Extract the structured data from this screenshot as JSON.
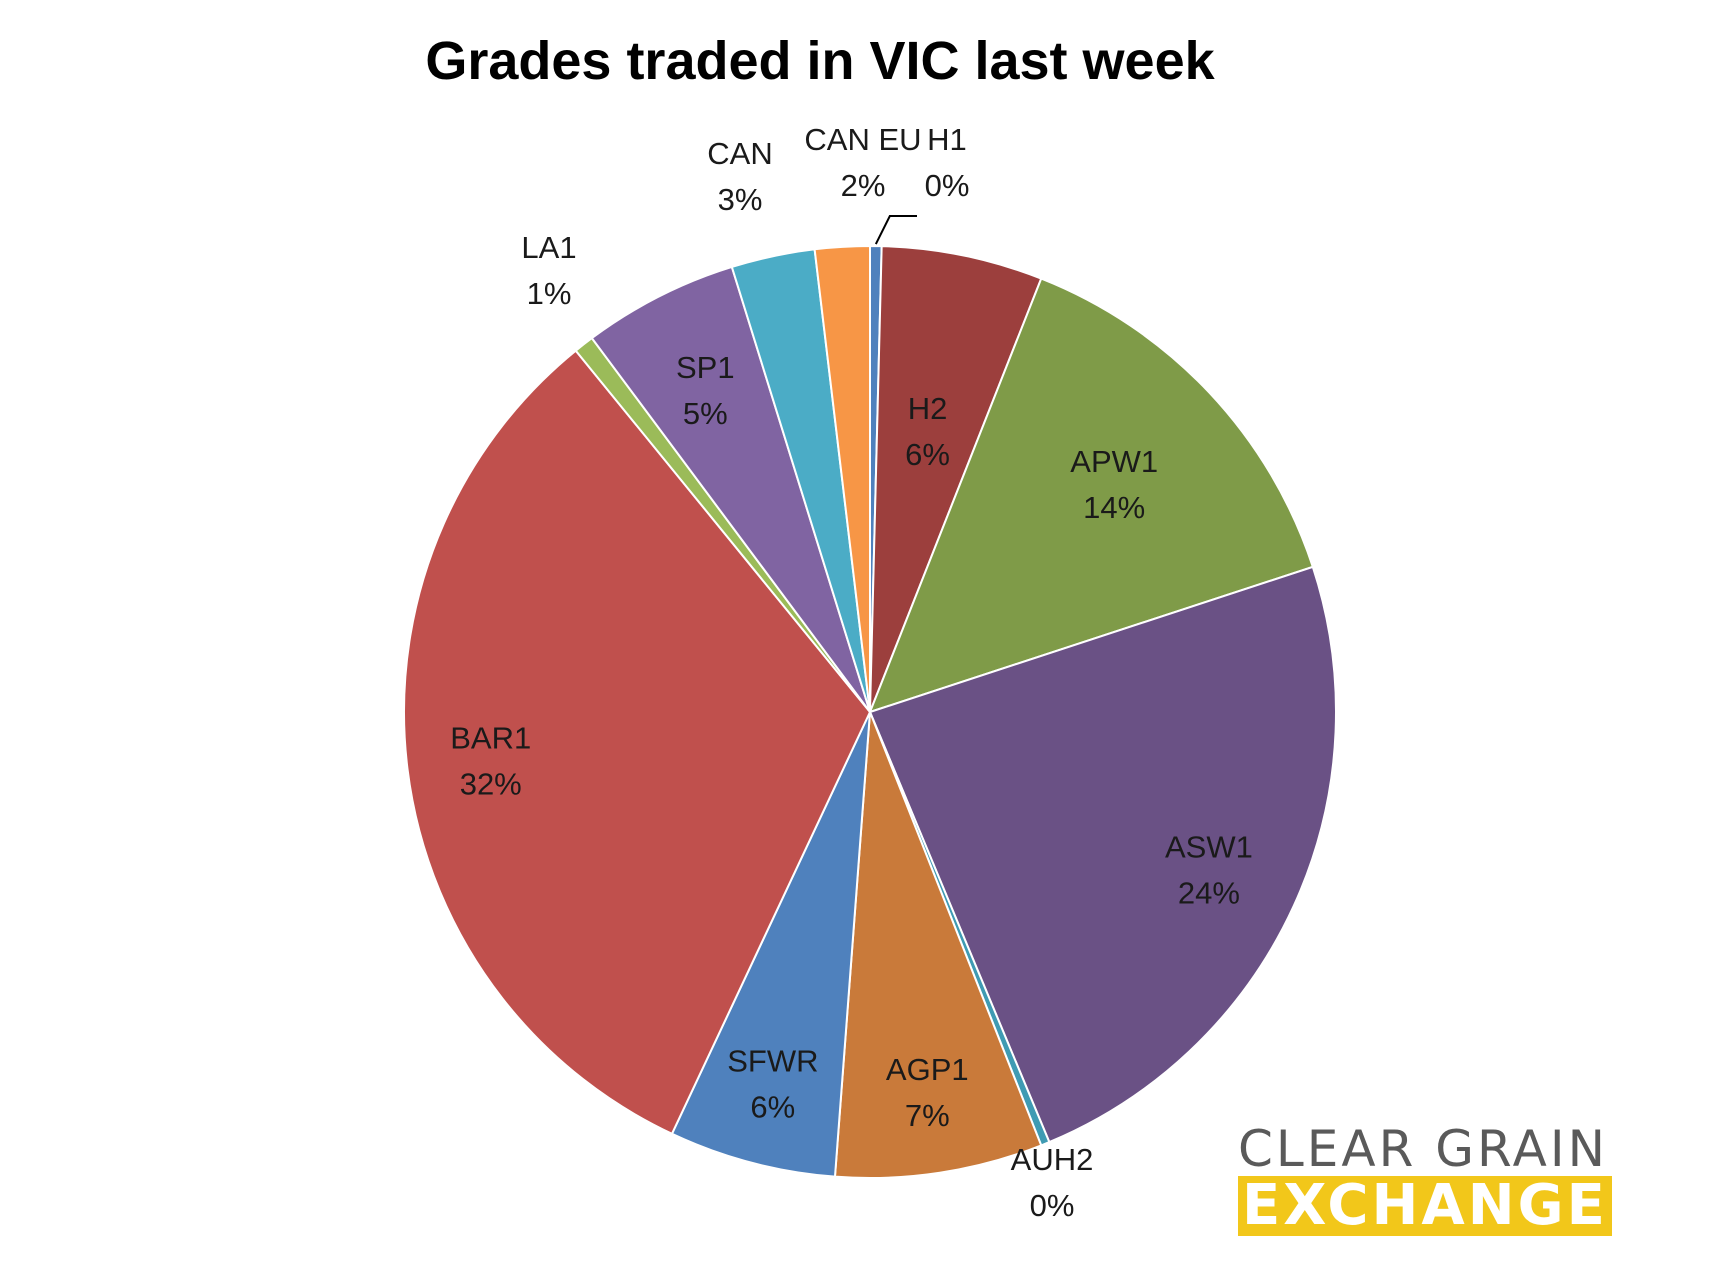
{
  "chart_data": {
    "type": "pie",
    "title": "Grades traded in VIC last week",
    "start": "12 o'clock, clockwise",
    "slices": [
      {
        "name": "H1",
        "value": 0.4,
        "label_pct": "0%",
        "color": "#4f81bd"
      },
      {
        "name": "H2",
        "value": 5.6,
        "label_pct": "6%",
        "color": "#9c3f3d"
      },
      {
        "name": "APW1",
        "value": 14.0,
        "label_pct": "14%",
        "color": "#7f9b48"
      },
      {
        "name": "ASW1",
        "value": 23.8,
        "label_pct": "24%",
        "color": "#6a5185"
      },
      {
        "name": "AUH2",
        "value": 0.3,
        "label_pct": "0%",
        "color": "#3f9bb3"
      },
      {
        "name": "AGP1",
        "value": 7.2,
        "label_pct": "7%",
        "color": "#c97a3a"
      },
      {
        "name": "SFWR",
        "value": 5.8,
        "label_pct": "6%",
        "color": "#4f81bd"
      },
      {
        "name": "BAR1",
        "value": 32.2,
        "label_pct": "32%",
        "color": "#c0504d"
      },
      {
        "name": "LA1",
        "value": 0.7,
        "label_pct": "1%",
        "color": "#9bbb59"
      },
      {
        "name": "SP1",
        "value": 5.4,
        "label_pct": "5%",
        "color": "#8064a2"
      },
      {
        "name": "CAN",
        "value": 2.9,
        "label_pct": "3%",
        "color": "#4bacc6"
      },
      {
        "name": "CAN EU",
        "value": 1.9,
        "label_pct": "2%",
        "color": "#f79646"
      }
    ]
  },
  "logo": {
    "line1": "CLEAR GRAIN",
    "line2": "EXCHANGE"
  }
}
